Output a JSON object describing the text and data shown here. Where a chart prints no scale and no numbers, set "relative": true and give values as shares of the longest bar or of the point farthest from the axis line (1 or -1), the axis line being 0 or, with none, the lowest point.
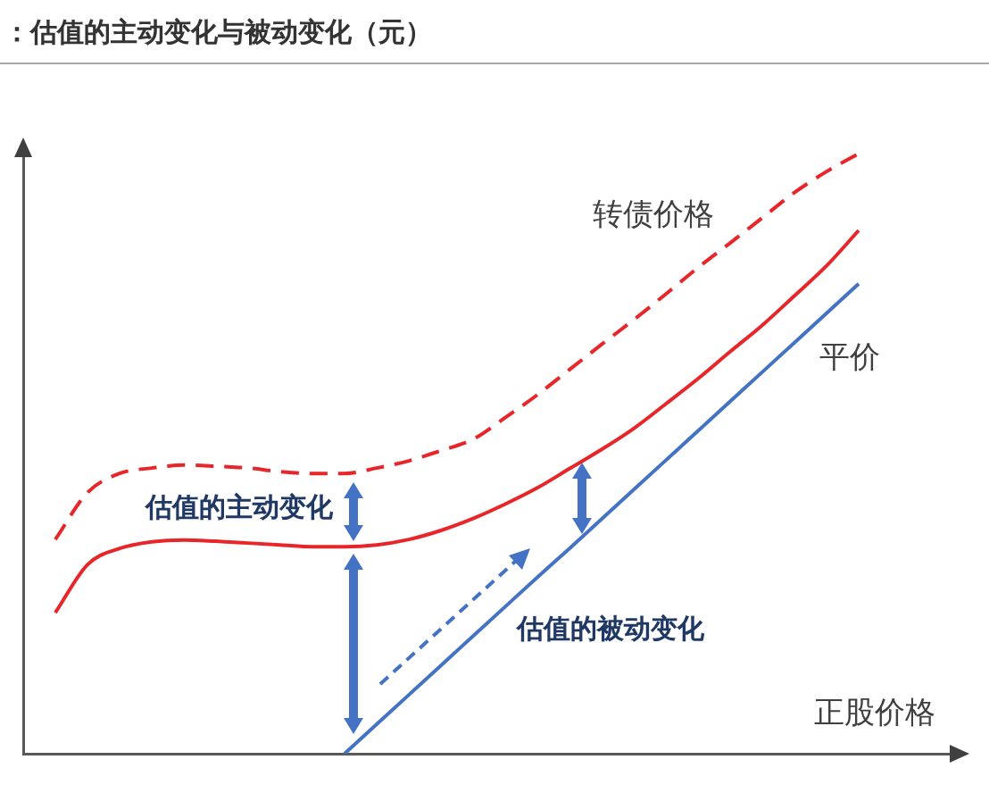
{
  "chart_data": {
    "type": "line",
    "title": "：估值的主动变化与被动变化（元）",
    "xlabel": "正股价格",
    "categories": [
      null,
      null,
      null,
      null,
      null,
      null,
      null,
      null,
      null,
      null,
      null,
      null,
      null,
      null,
      null,
      null,
      null,
      null,
      null,
      null,
      null,
      null,
      null,
      null,
      null,
      null,
      null,
      null,
      null,
      null
    ],
    "relative": true,
    "series": [
      {
        "name": "转债价格",
        "color": "#e8262a",
        "line_style": "dashed",
        "values": [
          null,
          0.357,
          0.435,
          0.467,
          0.476,
          0.481,
          0.479,
          0.476,
          0.47,
          0.467,
          0.467,
          0.476,
          0.488,
          0.505,
          0.524,
          0.56,
          0.598,
          0.64,
          0.682,
          0.723,
          0.766,
          0.81,
          0.851,
          0.893,
          0.935,
          0.97,
          1,
          null,
          null,
          null
        ]
      },
      {
        "color": "#e8262a",
        "line_style": "solid",
        "values": [
          null,
          0.235,
          0.315,
          0.342,
          0.353,
          0.356,
          0.354,
          0.351,
          0.348,
          0.345,
          0.345,
          0.348,
          0.357,
          0.372,
          0.392,
          0.416,
          0.443,
          0.475,
          0.507,
          0.542,
          0.583,
          0.625,
          0.67,
          0.714,
          0.763,
          0.813,
          0.872,
          null,
          null,
          null
        ]
      },
      {
        "name": "平价",
        "color": "#4472c4",
        "line_style": "solid",
        "values": [
          null,
          null,
          null,
          null,
          null,
          null,
          null,
          null,
          null,
          null,
          0,
          0.049,
          0.098,
          0.147,
          0.196,
          0.245,
          0.294,
          0.342,
          0.391,
          0.44,
          0.489,
          0.538,
          0.587,
          0.636,
          0.685,
          0.734,
          0.783,
          null,
          null,
          null
        ]
      }
    ],
    "annotations": [
      "估值的主动变化",
      "估值的被动变化"
    ],
    "legend": false,
    "grid": false,
    "marker": "none"
  }
}
